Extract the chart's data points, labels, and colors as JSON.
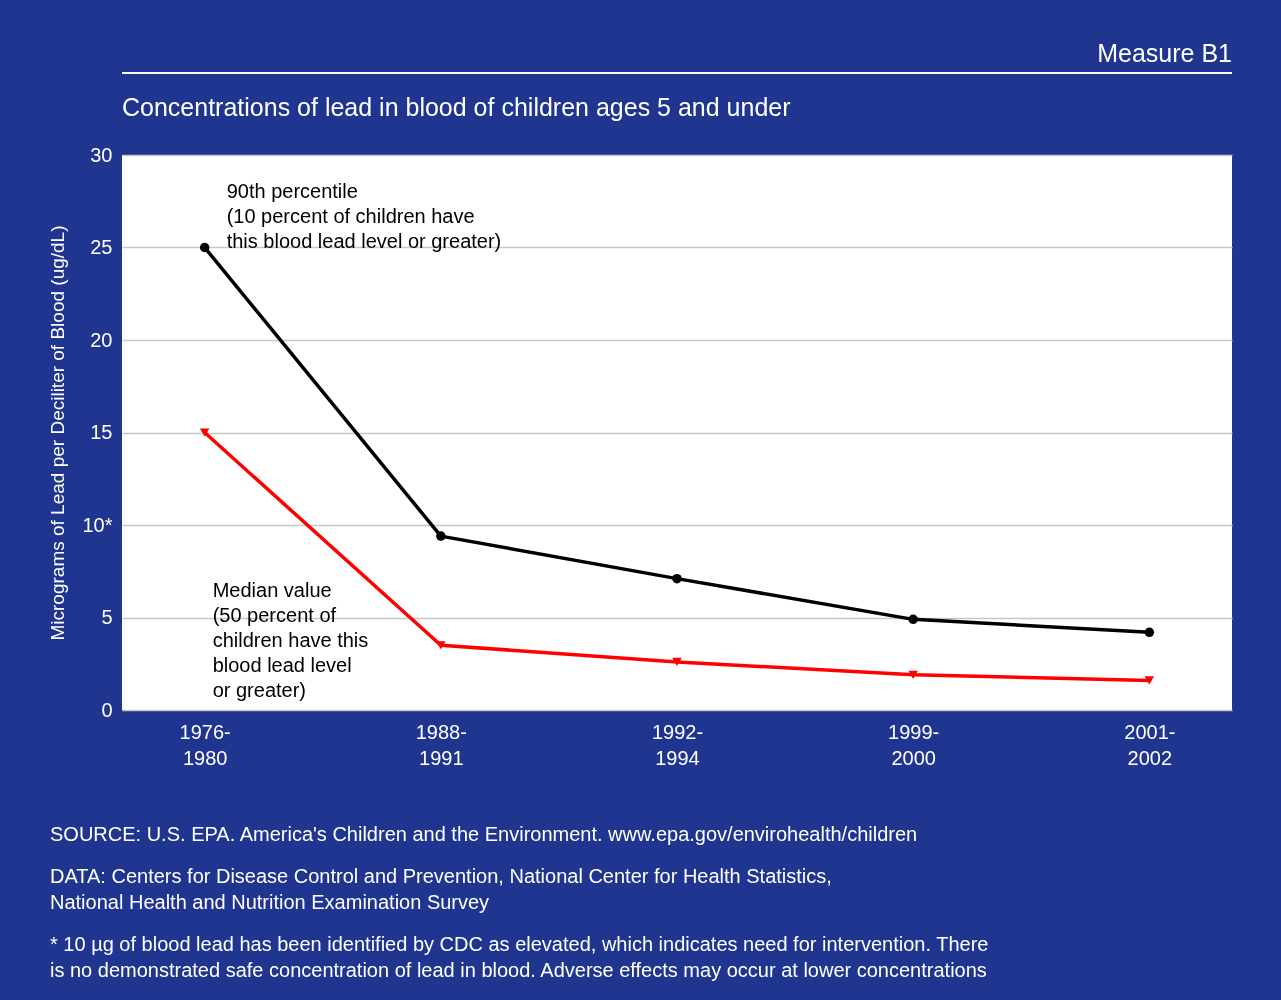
{
  "chart_data": {
    "type": "line",
    "title": "Measure B1",
    "subtitle": "Concentrations of lead in blood of children ages 5 and under",
    "ylabel": "Micrograms of Lead per Deciliter of Blood (ug/dL)",
    "categories": [
      "1976-1980",
      "1988-1991",
      "1992-1994",
      "1999-2000",
      "2001-2002"
    ],
    "ylim": [
      0,
      30
    ],
    "yticks": [
      0,
      5,
      {
        "value": 10,
        "label": "10*"
      },
      15,
      20,
      25,
      30
    ],
    "grid": "y",
    "line_style": "solid",
    "series": [
      {
        "name": "90th percentile\n(10 percent of children have\nthis blood lead level or greater)",
        "color": "#000000",
        "marker": "circle",
        "values": [
          25,
          9.4,
          7.1,
          4.9,
          4.2
        ]
      },
      {
        "name": "Median value\n(50 percent of\nchildren have this\nblood lead level\nor greater)",
        "color": "#ff0000",
        "marker": "triangle",
        "values": [
          15,
          3.5,
          2.6,
          1.9,
          1.6
        ]
      }
    ],
    "annotations": [
      "SOURCE: U.S. EPA. America's Children and the Environment. www.epa.gov/envirohealth/children",
      "DATA: Centers for Disease Control and Prevention, National Center for Health Statistics,\nNational Health and Nutrition Examination Survey",
      "* 10 µg of blood lead has been identified by CDC as elevated, which indicates need for intervention. There\n   is no demonstrated safe concentration of lead in blood. Adverse effects may occur at lower concentrations"
    ]
  }
}
